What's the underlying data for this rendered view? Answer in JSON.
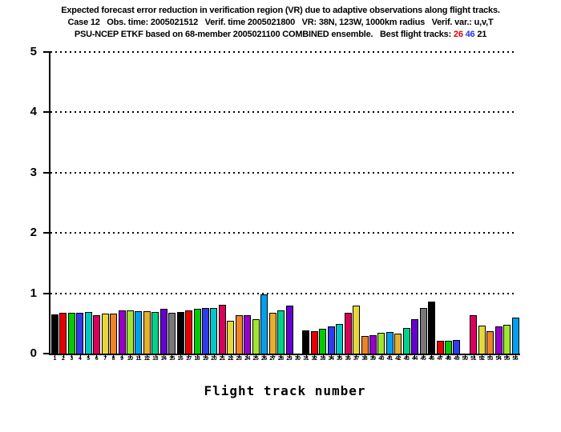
{
  "title": {
    "line1": "Expected forecast error reduction in verification region (VR) due to adaptive observations along flight tracks.",
    "line2": "Case 12   Obs. time: 2005021512   Verif. time 2005021800   VR: 38N, 123W, 1000km radius   Verif. var.: u,v,T",
    "line3_prefix": "PSU-NCEP ETKF based on 68-member 2005021100 COMBINED ensemble.   Best flight tracks: ",
    "best_tracks": [
      {
        "label": "26",
        "color": "#e00000"
      },
      {
        "label": "46",
        "color": "#2233ee"
      },
      {
        "label": "21",
        "color": "#000000"
      }
    ]
  },
  "chart_data": {
    "type": "bar",
    "title": "",
    "xlabel": "Flight track number",
    "ylabel": "",
    "ylim": [
      0,
      5
    ],
    "yticks": [
      0,
      1,
      2,
      3,
      4,
      5
    ],
    "grid": "horizontal dotted lines at y = 1,2,3,4,5",
    "legend": "none",
    "categories": [
      1,
      2,
      3,
      4,
      5,
      6,
      7,
      8,
      9,
      10,
      11,
      12,
      13,
      14,
      15,
      16,
      17,
      18,
      19,
      20,
      21,
      22,
      23,
      24,
      25,
      26,
      27,
      28,
      29,
      30,
      31,
      32,
      33,
      34,
      35,
      36,
      37,
      38,
      39,
      40,
      41,
      42,
      43,
      44,
      45,
      46,
      47,
      48,
      49,
      50,
      51,
      52,
      53,
      54,
      55,
      56
    ],
    "values": [
      0.65,
      0.67,
      0.67,
      0.67,
      0.69,
      0.64,
      0.66,
      0.66,
      0.71,
      0.72,
      0.7,
      0.7,
      0.69,
      0.74,
      0.68,
      0.69,
      0.72,
      0.74,
      0.75,
      0.76,
      0.81,
      0.54,
      0.64,
      0.63,
      0.57,
      0.98,
      0.67,
      0.72,
      0.79,
      0,
      0.38,
      0.37,
      0.41,
      0.45,
      0.49,
      0.67,
      0.8,
      0.29,
      0.31,
      0.34,
      0.36,
      0.33,
      0.42,
      0.57,
      0.75,
      0.86,
      0.21,
      0.21,
      0.23,
      0,
      0.64,
      0.46,
      0.37,
      0.45,
      0.48,
      0.6
    ],
    "palette": [
      "#000000",
      "#e80000",
      "#00cc00",
      "#2e3cf0",
      "#00c8c8",
      "#d8005a",
      "#e6d83c",
      "#f08228",
      "#9600c8",
      "#a0e632",
      "#00a0f0",
      "#e6af2e",
      "#00d28c",
      "#6400d2",
      "#787878"
    ],
    "color_rule": "bar at category i uses palette[(i-1) mod 15]",
    "zero_value_tracks": [
      30,
      50
    ],
    "best_tracks": [
      26,
      46,
      21
    ]
  }
}
